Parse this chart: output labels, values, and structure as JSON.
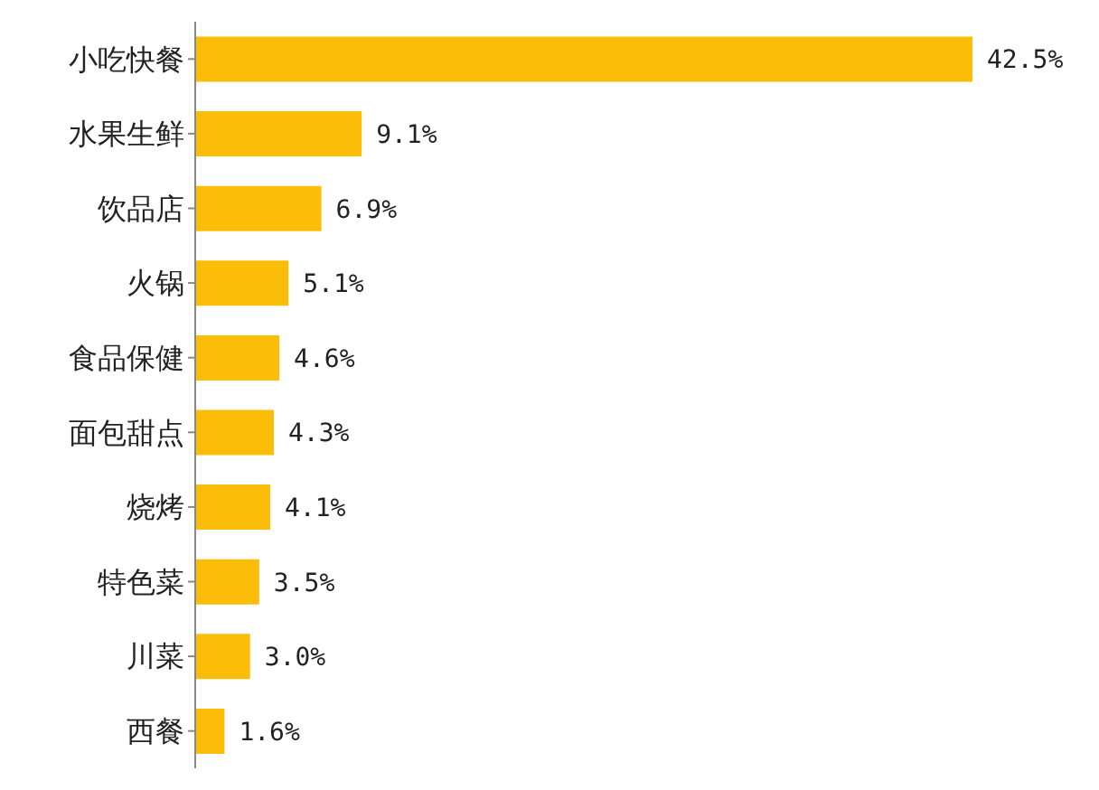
{
  "chart_data": {
    "type": "bar",
    "orientation": "horizontal",
    "categories": [
      "小吃快餐",
      "水果生鲜",
      "饮品店",
      "火锅",
      "食品保健",
      "面包甜点",
      "烧烤",
      "特色菜",
      "川菜",
      "西餐"
    ],
    "values": [
      42.5,
      9.1,
      6.9,
      5.1,
      4.6,
      4.3,
      4.1,
      3.5,
      3.0,
      1.6
    ],
    "value_labels": [
      "42.5%",
      "9.1%",
      "6.9%",
      "5.1%",
      "4.6%",
      "4.3%",
      "4.1%",
      "3.5%",
      "3.0%",
      "1.6%"
    ],
    "color": "#fbbd08",
    "grid": false,
    "legend": false
  }
}
